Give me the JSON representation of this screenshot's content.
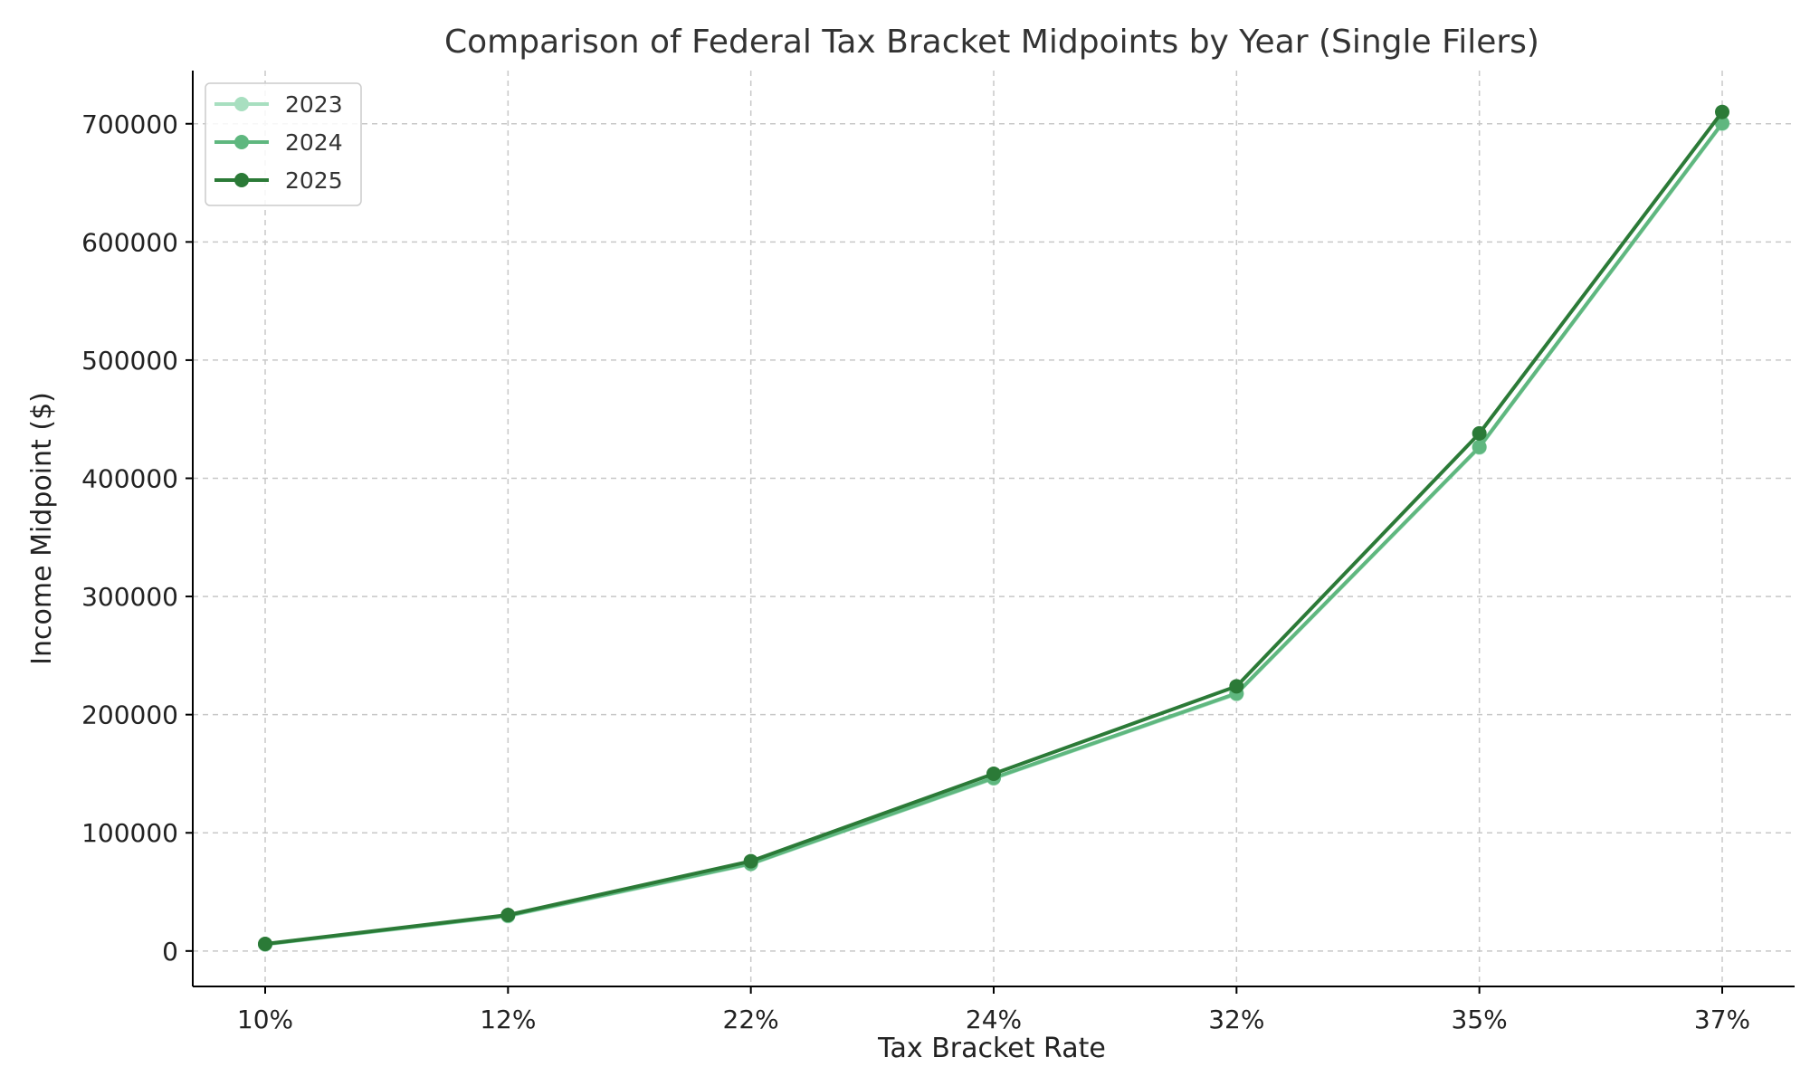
{
  "chart_data": {
    "type": "line",
    "title": "Comparison of Federal Tax Bracket Midpoints by Year (Single Filers)",
    "xlabel": "Tax Bracket Rate",
    "ylabel": "Income Midpoint ($)",
    "categories": [
      "10%",
      "12%",
      "22%",
      "24%",
      "32%",
      "35%",
      "37%"
    ],
    "ylim": [
      -30000,
      745000
    ],
    "yticks": [
      0,
      100000,
      200000,
      300000,
      400000,
      500000,
      600000,
      700000
    ],
    "ytick_labels": [
      "0",
      "100000",
      "200000",
      "300000",
      "400000",
      "500000",
      "600000",
      "700000"
    ],
    "grid": true,
    "legend_position": "top-left",
    "series": [
      {
        "name": "2023",
        "color": "#a8dfc0",
        "values": [
          5500,
          29500,
          73500,
          146000,
          217500,
          426000,
          700000
        ]
      },
      {
        "name": "2024",
        "color": "#5fb77f",
        "values": [
          5800,
          30000,
          74000,
          146500,
          218000,
          426500,
          700500
        ]
      },
      {
        "name": "2025",
        "color": "#2b7a37",
        "values": [
          6000,
          30500,
          76000,
          150000,
          224000,
          438000,
          710000
        ]
      }
    ]
  }
}
